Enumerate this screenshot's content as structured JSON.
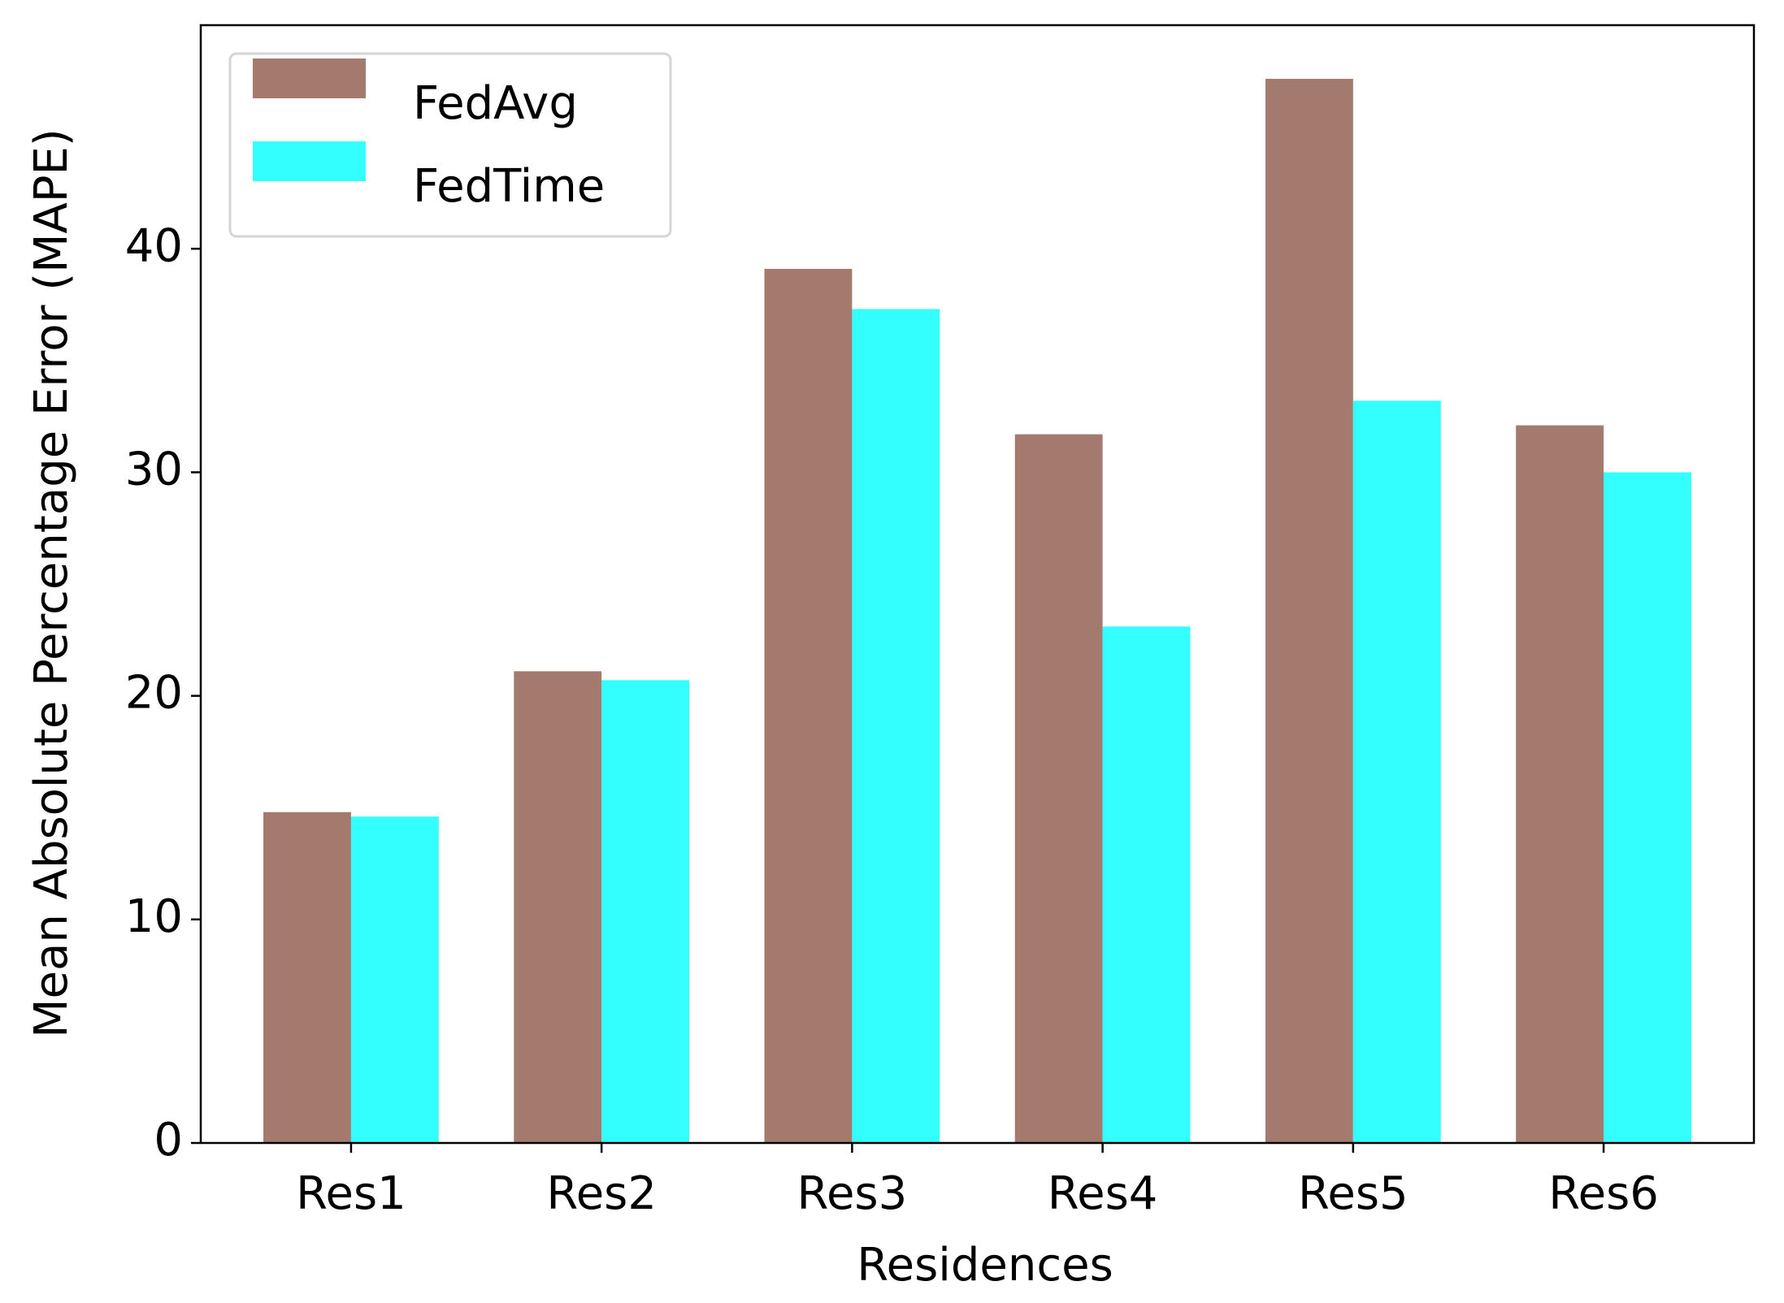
{
  "chart_data": {
    "type": "bar",
    "x_label": "Residences",
    "y_label": "Mean Absolute Percentage Error (MAPE)",
    "categories": [
      "Res1",
      "Res2",
      "Res3",
      "Res4",
      "Res5",
      "Res6"
    ],
    "series": [
      {
        "name": "FedAvg",
        "color": "#a47a6e",
        "values": [
          14.8,
          21.1,
          39.1,
          31.7,
          47.6,
          32.1
        ]
      },
      {
        "name": "FedTime",
        "color": "#33ffff",
        "values": [
          14.6,
          20.7,
          37.3,
          23.1,
          33.2,
          30.0
        ]
      }
    ],
    "ylim": [
      0,
      50
    ],
    "yticks": [
      0,
      10,
      20,
      30,
      40
    ],
    "grid": false,
    "legend": "upper left"
  }
}
